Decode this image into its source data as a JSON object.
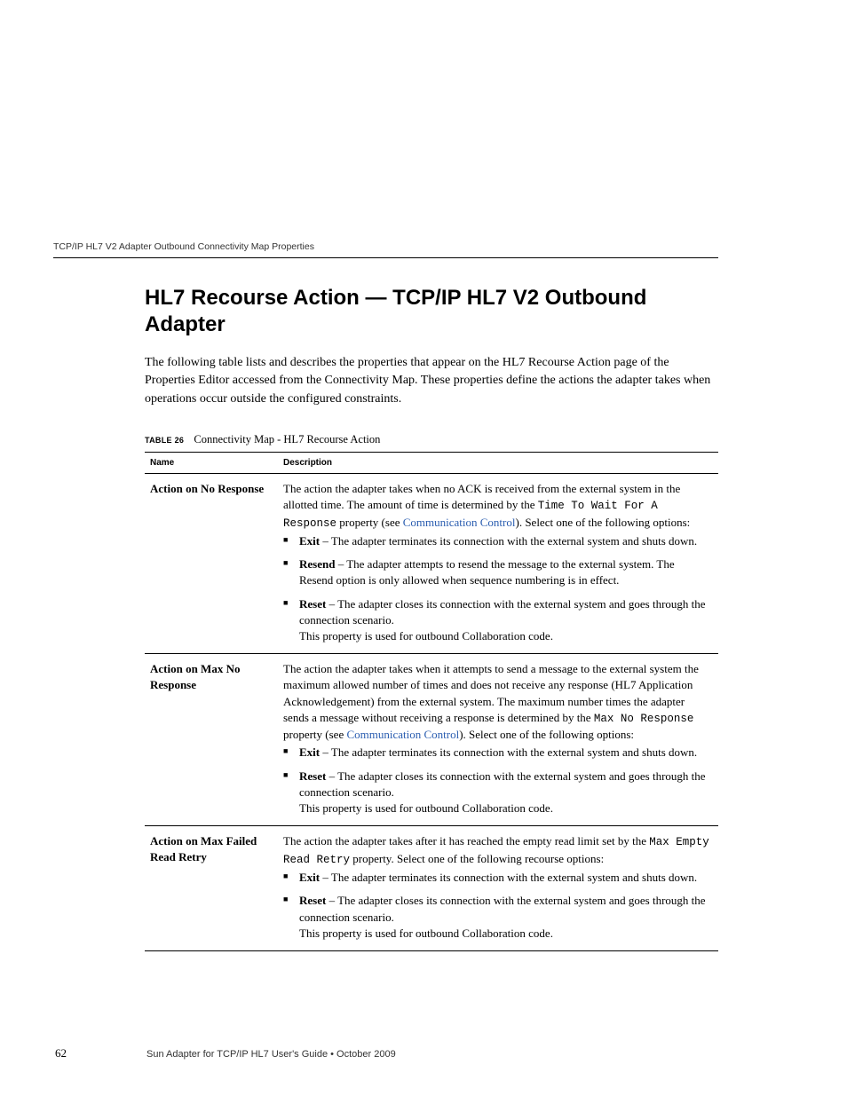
{
  "running_header": "TCP/IP HL7 V2 Adapter Outbound Connectivity Map Properties",
  "heading": "HL7 Recourse Action — TCP/IP HL7 V2 Outbound Adapter",
  "intro": "The following table lists and describes the properties that appear on the HL7 Recourse Action page of the Properties Editor accessed from the Connectivity Map. These properties define the actions the adapter takes when operations occur outside the configured constraints.",
  "table": {
    "caption_label": "TABLE 26",
    "caption_text": "Connectivity Map - HL7 Recourse Action",
    "headers": {
      "name": "Name",
      "description": "Description"
    },
    "rows": [
      {
        "name": "Action on No Response",
        "lead_pre": "The action the adapter takes when no ACK is received from the external system in the allotted time. The amount of time is determined by the ",
        "mono1": "Time To Wait For A Response",
        "lead_mid": " property (see ",
        "link": "Communication Control",
        "lead_post": "). Select one of the following options:",
        "options": [
          {
            "label": "Exit",
            "text": " – The adapter terminates its connection with the external system and shuts down."
          },
          {
            "label": "Resend",
            "text": " – The adapter attempts to resend the message to the external system. The Resend option is only allowed when sequence numbering is in effect."
          },
          {
            "label": "Reset",
            "text": " – The adapter closes its connection with the external system and goes through the connection scenario.",
            "sub": "This property is used for outbound Collaboration code."
          }
        ]
      },
      {
        "name": "Action on Max No Response",
        "lead_pre": "The action the adapter takes when it attempts to send a message to the external system the maximum allowed number of times and does not receive any response (HL7 Application Acknowledgement) from the external system. The maximum number times the adapter sends a message without receiving a response is determined by the ",
        "mono1": "Max No Response",
        "lead_mid": " property (see ",
        "link": "Communication Control",
        "lead_post": "). Select one of the following options:",
        "options": [
          {
            "label": "Exit",
            "text": " – The adapter terminates its connection with the external system and shuts down."
          },
          {
            "label": "Reset",
            "text": " – The adapter closes its connection with the external system and goes through the connection scenario.",
            "sub": "This property is used for outbound Collaboration code."
          }
        ]
      },
      {
        "name": "Action on Max Failed Read Retry",
        "lead_pre": "The action the adapter takes after it has reached the empty read limit set by the ",
        "mono1": "Max Empty Read Retry",
        "lead_mid": " property. Select one of the following recourse options:",
        "link": "",
        "lead_post": "",
        "options": [
          {
            "label": "Exit",
            "text": " – The adapter terminates its connection with the external system and shuts down."
          },
          {
            "label": "Reset",
            "text": " – The adapter closes its connection with the external system and goes through the connection scenario.",
            "sub": "This property is used for outbound Collaboration code."
          }
        ]
      }
    ]
  },
  "footer": {
    "page_number": "62",
    "text": "Sun Adapter for TCP/IP HL7 User's Guide   •   October 2009"
  }
}
